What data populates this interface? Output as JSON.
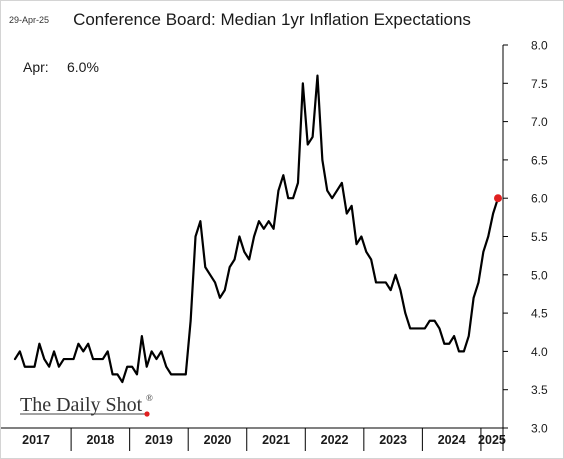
{
  "date_stamp": "29-Apr-25",
  "watermark": {
    "brand": "The Daily Shot",
    "registered": "®"
  },
  "colors": {
    "line": "#000000",
    "latest_marker": "#e02020",
    "watermark_dot": "#e02020",
    "axis": "#000000"
  },
  "chart_data": {
    "type": "line",
    "title": "Conference Board: Median 1yr Inflation Expectations",
    "annotation": {
      "label": "Apr:",
      "value": "6.0%"
    },
    "xlabel": "",
    "ylabel": "",
    "ylim": [
      3.0,
      8.0
    ],
    "yticks": [
      "3.0",
      "3.5",
      "4.0",
      "4.5",
      "5.0",
      "5.5",
      "6.0",
      "6.5",
      "7.0",
      "7.5",
      "8.0"
    ],
    "years": [
      "2017",
      "2018",
      "2019",
      "2020",
      "2021",
      "2022",
      "2023",
      "2024",
      "2025"
    ],
    "x_start": "2017-01",
    "x_end": "2025-04",
    "grid": false,
    "series": [
      {
        "values": [
          3.9,
          4.0,
          3.8,
          3.8,
          3.8,
          4.1,
          3.9,
          3.8,
          4.0,
          3.8,
          3.9,
          3.9,
          3.9,
          4.1,
          4.0,
          4.1,
          3.9,
          3.9,
          3.9,
          4.0,
          3.7,
          3.7,
          3.6,
          3.8,
          3.8,
          3.7,
          4.2,
          3.8,
          4.0,
          3.9,
          4.0,
          3.8,
          3.7,
          3.7,
          3.7,
          3.7,
          4.4,
          5.5,
          5.7,
          5.1,
          5.0,
          4.9,
          4.7,
          4.8,
          5.1,
          5.2,
          5.5,
          5.3,
          5.2,
          5.5,
          5.7,
          5.6,
          5.7,
          5.6,
          6.1,
          6.3,
          6.0,
          6.0,
          6.2,
          7.5,
          6.7,
          6.8,
          7.6,
          6.5,
          6.1,
          6.0,
          6.1,
          6.2,
          5.8,
          5.9,
          5.4,
          5.5,
          5.3,
          5.2,
          4.9,
          4.9,
          4.9,
          4.8,
          5.0,
          4.8,
          4.5,
          4.3,
          4.3,
          4.3,
          4.3,
          4.4,
          4.4,
          4.3,
          4.1,
          4.1,
          4.2,
          4.0,
          4.0,
          4.2,
          4.7,
          4.9,
          5.3,
          5.5,
          5.8,
          6.0
        ]
      }
    ]
  }
}
